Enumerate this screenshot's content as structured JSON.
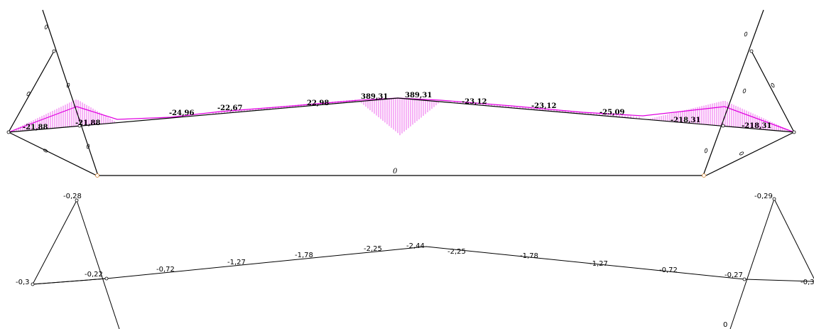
{
  "colors": {
    "diagram": "#e000e0",
    "member": "#000000",
    "support": "#d08030"
  },
  "top_frame": {
    "zero_label": "0",
    "moment_labels": [
      "-21,88",
      "-21,88",
      "-24,96",
      "-22,67",
      "22,98",
      "389,31",
      "389,31",
      "-23,12",
      "-23,12",
      "-25,09",
      "-218,31",
      "-218,31"
    ]
  },
  "bottom_frame": {
    "deflection_labels": [
      "-0,28",
      "-0,3",
      "-0,22",
      "-0,72",
      "-1,27",
      "-1,78",
      "-2,25",
      "-2,44",
      "-2,25",
      "-1,78",
      "-1,27",
      "-0,72",
      "-0,27",
      "-0,29",
      "-0,3",
      "0"
    ]
  }
}
